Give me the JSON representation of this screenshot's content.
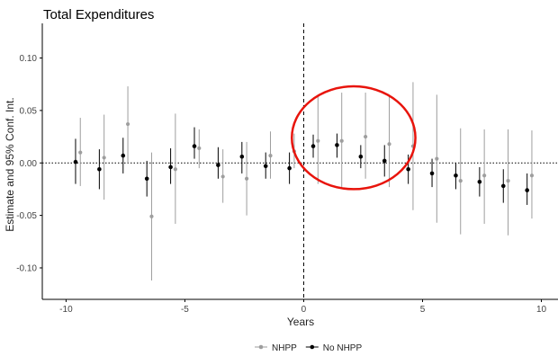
{
  "chart_data": {
    "type": "scatter",
    "title": "Total Expenditures",
    "xlabel": "Years",
    "ylabel": "Estimate and 95% Conf. Int.",
    "xlim": [
      -11,
      10.7
    ],
    "ylim": [
      -0.13,
      0.133
    ],
    "xticks": [
      -10,
      -5,
      0,
      5,
      10
    ],
    "yticks": [
      -0.1,
      -0.05,
      0.0,
      0.05,
      0.1
    ],
    "xtick_labels": [
      "-10",
      "-5",
      "0",
      "5",
      "10"
    ],
    "ytick_labels": [
      "-0.10",
      "-0.05",
      "0.00",
      "0.05",
      "0.10"
    ],
    "reference_lines": {
      "horizontal_y": 0,
      "vertical_x": 0
    },
    "legend_position": "bottom",
    "grid": false,
    "annotation": {
      "shape": "circle",
      "color": "#e8140c",
      "center_x": 2.1,
      "center_y": 0.024,
      "radius_x": 2.6,
      "radius_y": 0.049
    },
    "series": [
      {
        "name": "NHPP",
        "color": "#9e9e9e",
        "x": [
          -9.4,
          -8.4,
          -7.4,
          -6.4,
          -5.4,
          -4.4,
          -3.4,
          -2.4,
          -1.4,
          -0.4,
          0.6,
          1.6,
          2.6,
          3.6,
          4.6,
          5.6,
          6.6,
          7.6,
          8.6,
          9.6
        ],
        "y": [
          0.01,
          0.005,
          0.037,
          -0.051,
          -0.006,
          0.014,
          -0.013,
          -0.015,
          0.007,
          0.011,
          0.021,
          0.021,
          0.025,
          0.018,
          0.016,
          0.004,
          -0.017,
          -0.012,
          -0.017,
          -0.012
        ],
        "ci_low": [
          -0.022,
          -0.035,
          0.0,
          -0.112,
          -0.058,
          -0.005,
          -0.038,
          -0.05,
          -0.015,
          -0.005,
          -0.02,
          -0.025,
          -0.015,
          -0.023,
          -0.045,
          -0.057,
          -0.068,
          -0.058,
          -0.069,
          -0.053
        ],
        "ci_high": [
          0.043,
          0.046,
          0.073,
          0.01,
          0.047,
          0.032,
          0.013,
          0.02,
          0.03,
          0.028,
          0.065,
          0.067,
          0.067,
          0.065,
          0.077,
          0.065,
          0.033,
          0.032,
          0.032,
          0.031
        ]
      },
      {
        "name": "No NHPP",
        "color": "#000000",
        "x": [
          -9.6,
          -8.6,
          -7.6,
          -6.6,
          -5.6,
          -4.6,
          -3.6,
          -2.6,
          -1.6,
          -0.6,
          0.4,
          1.4,
          2.4,
          3.4,
          4.4,
          5.4,
          6.4,
          7.4,
          8.4,
          9.4
        ],
        "y": [
          0.001,
          -0.006,
          0.007,
          -0.015,
          -0.004,
          0.016,
          -0.002,
          0.006,
          -0.003,
          -0.005,
          0.016,
          0.017,
          0.006,
          0.002,
          -0.006,
          -0.01,
          -0.012,
          -0.018,
          -0.022,
          -0.026
        ],
        "ci_low": [
          -0.02,
          -0.025,
          -0.01,
          -0.032,
          -0.02,
          0.004,
          -0.015,
          -0.01,
          -0.015,
          -0.02,
          0.005,
          0.005,
          -0.005,
          -0.013,
          -0.02,
          -0.023,
          -0.025,
          -0.032,
          -0.038,
          -0.04
        ],
        "ci_high": [
          0.023,
          0.013,
          0.024,
          0.002,
          0.014,
          0.034,
          0.015,
          0.02,
          0.01,
          0.01,
          0.027,
          0.028,
          0.017,
          0.017,
          0.008,
          0.004,
          0.0,
          -0.004,
          -0.006,
          -0.01
        ]
      }
    ]
  }
}
